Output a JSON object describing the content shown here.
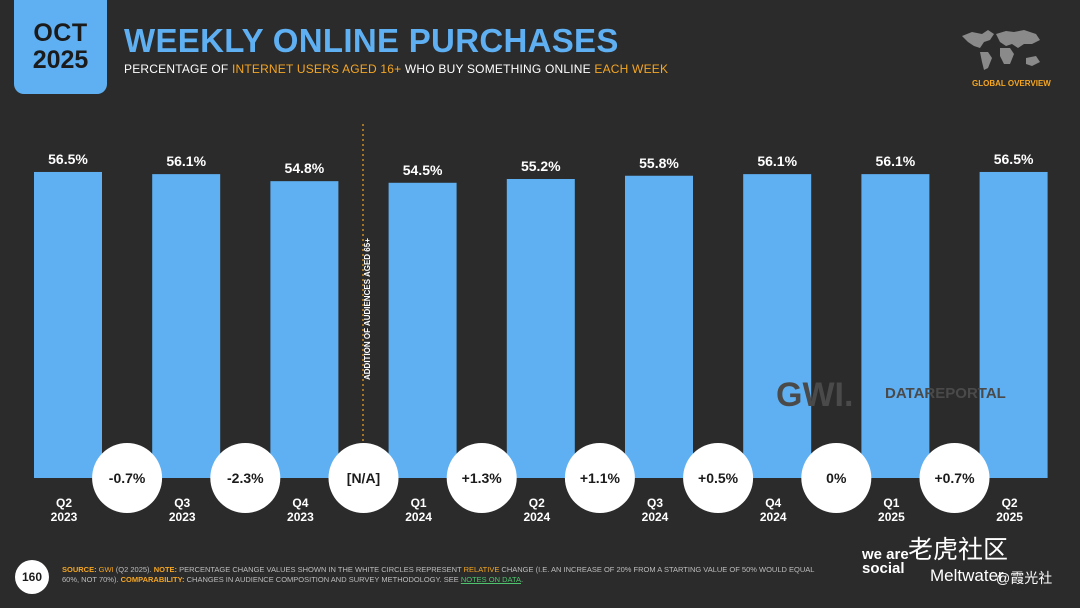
{
  "header": {
    "badge_month": "OCT",
    "badge_year": "2025",
    "title": "WEEKLY ONLINE PURCHASES",
    "subtitle_parts": [
      {
        "text": "PERCENTAGE OF ",
        "hl": false
      },
      {
        "text": "INTERNET USERS AGED 16+",
        "hl": true
      },
      {
        "text": " WHO BUY SOMETHING ONLINE ",
        "hl": false
      },
      {
        "text": "EACH WEEK",
        "hl": true
      }
    ],
    "region": "GLOBAL OVERVIEW"
  },
  "chart_data": {
    "type": "bar",
    "categories": [
      [
        "Q2",
        "2023"
      ],
      [
        "Q3",
        "2023"
      ],
      [
        "Q4",
        "2023"
      ],
      [
        "Q1",
        "2024"
      ],
      [
        "Q2",
        "2024"
      ],
      [
        "Q3",
        "2024"
      ],
      [
        "Q4",
        "2024"
      ],
      [
        "Q1",
        "2025"
      ],
      [
        "Q2",
        "2025"
      ]
    ],
    "values": [
      56.5,
      56.1,
      54.8,
      54.5,
      55.2,
      55.8,
      56.1,
      56.1,
      56.5
    ],
    "value_labels": [
      "56.5%",
      "56.1%",
      "54.8%",
      "54.5%",
      "55.2%",
      "55.8%",
      "56.1%",
      "56.1%",
      "56.5%"
    ],
    "changes": [
      "-0.7%",
      "-2.3%",
      "[N/A]",
      "+1.3%",
      "+1.1%",
      "+0.5%",
      "0%",
      "+0.7%"
    ],
    "divider_after_index": 2,
    "divider_label": "ADDITION OF AUDIENCES AGED 65+",
    "bar_color": "#5fb0f2",
    "ylim": [
      0,
      60
    ]
  },
  "watermark": {
    "gwi": "GWI.",
    "datareportal": "DATAREPORTAL"
  },
  "footer": {
    "page": "160",
    "notes": [
      {
        "text": "SOURCE: ",
        "cls": "lab"
      },
      {
        "text": "GWI ",
        "cls": "em"
      },
      {
        "text": "(Q2 2025). ",
        "cls": ""
      },
      {
        "text": "NOTE: ",
        "cls": "lab"
      },
      {
        "text": "PERCENTAGE CHANGE VALUES SHOWN IN THE WHITE CIRCLES REPRESENT ",
        "cls": ""
      },
      {
        "text": "RELATIVE",
        "cls": "em"
      },
      {
        "text": " CHANGE (I.E. AN INCREASE OF 20% FROM A STARTING VALUE OF 50% WOULD EQUAL 60%, NOT 70%). ",
        "cls": ""
      },
      {
        "text": "COMPARABILITY: ",
        "cls": "lab"
      },
      {
        "text": "CHANGES IN AUDIENCE COMPOSITION AND SURVEY METHODOLOGY. SEE ",
        "cls": ""
      },
      {
        "text": "NOTES ON DATA",
        "cls": "lnk"
      },
      {
        "text": ".",
        "cls": ""
      }
    ],
    "brand1": "we are social",
    "brand2": "Meltwater",
    "overlay1": "老虎社区",
    "overlay2": "@霞光社"
  }
}
